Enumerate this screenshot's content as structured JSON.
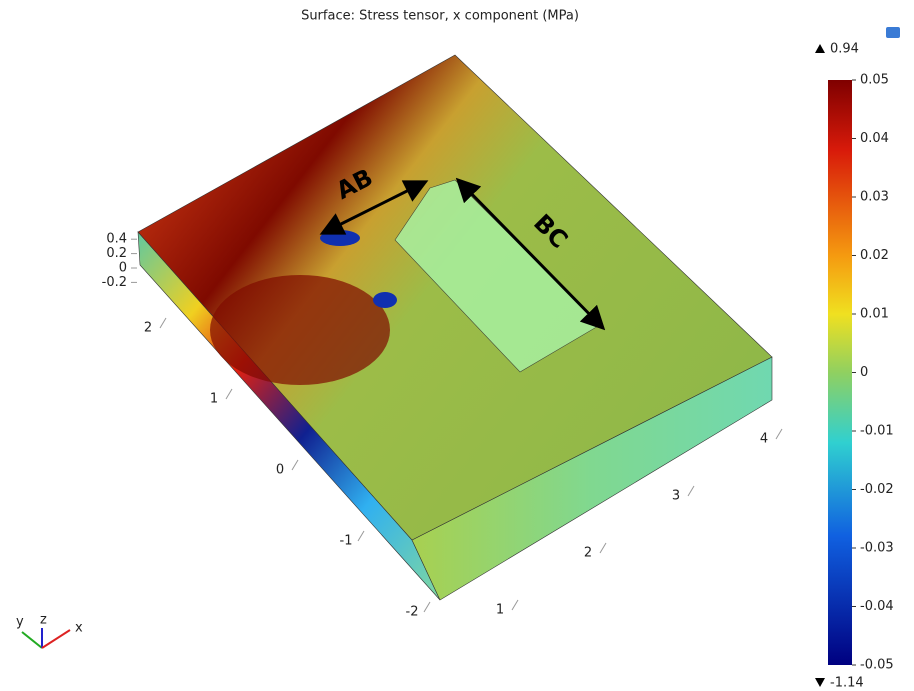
{
  "chart_data": {
    "type": "surface",
    "title": "Surface: Stress tensor, x component (MPa)",
    "annotations": [
      "AB",
      "BC"
    ],
    "xticks": [
      1,
      2,
      3,
      4
    ],
    "yticks": [
      -2,
      -1,
      0,
      1,
      2
    ],
    "zticks": [
      -0.2,
      0,
      0.2,
      0.4
    ],
    "colorbar": {
      "clim": [
        -0.05,
        0.05
      ],
      "ticks": [
        -0.05,
        -0.04,
        -0.03,
        -0.02,
        -0.01,
        0,
        0.01,
        0.02,
        0.03,
        0.04,
        0.05
      ],
      "max": 0.94,
      "min": -1.14
    },
    "triad": {
      "x": "x",
      "y": "y",
      "z": "z"
    }
  }
}
